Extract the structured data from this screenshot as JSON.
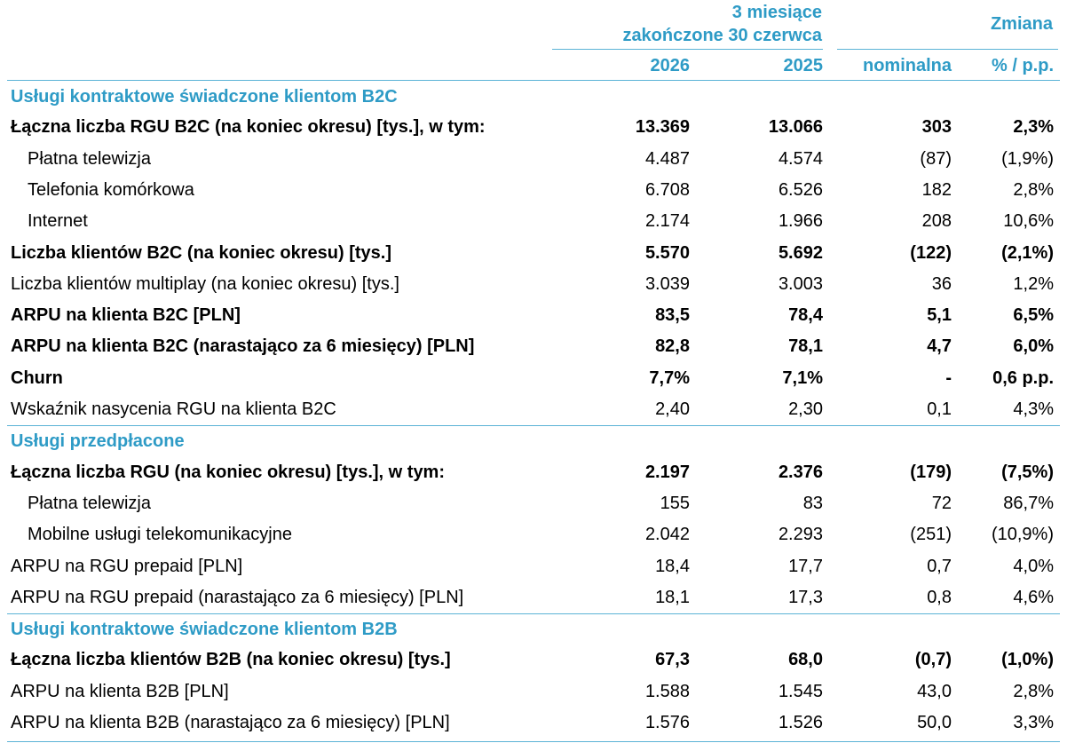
{
  "header": {
    "period_line1": "3 miesiące",
    "period_line2": "zakończone 30 czerwca",
    "change": "Zmiana",
    "col_2026": "2026",
    "col_2025": "2025",
    "col_nominal": "nominalna",
    "col_pct": "% / p.p."
  },
  "sections": [
    {
      "title": "Usługi kontraktowe świadczone klientom B2C",
      "rows": [
        {
          "label": "Łączna liczba RGU B2C (na koniec okresu) [tys.], w tym:",
          "v2026": "13.369",
          "v2025": "13.066",
          "nominal": "303",
          "pct": "2,3%",
          "bold": true,
          "indent": false
        },
        {
          "label": "Płatna telewizja",
          "v2026": "4.487",
          "v2025": "4.574",
          "nominal": "(87)",
          "pct": "(1,9%)",
          "bold": false,
          "indent": true
        },
        {
          "label": "Telefonia komórkowa",
          "v2026": "6.708",
          "v2025": "6.526",
          "nominal": "182",
          "pct": "2,8%",
          "bold": false,
          "indent": true
        },
        {
          "label": "Internet",
          "v2026": "2.174",
          "v2025": "1.966",
          "nominal": "208",
          "pct": "10,6%",
          "bold": false,
          "indent": true
        },
        {
          "label": "Liczba klientów B2C (na koniec okresu) [tys.]",
          "v2026": "5.570",
          "v2025": "5.692",
          "nominal": "(122)",
          "pct": "(2,1%)",
          "bold": true,
          "indent": false
        },
        {
          "label": "Liczba klientów multiplay (na koniec okresu) [tys.]",
          "v2026": "3.039",
          "v2025": "3.003",
          "nominal": "36",
          "pct": "1,2%",
          "bold": false,
          "indent": false
        },
        {
          "label": "ARPU na klienta B2C [PLN]",
          "v2026": "83,5",
          "v2025": "78,4",
          "nominal": "5,1",
          "pct": "6,5%",
          "bold": true,
          "indent": false
        },
        {
          "label": "ARPU na klienta B2C (narastająco za 6 miesięcy) [PLN]",
          "v2026": "82,8",
          "v2025": "78,1",
          "nominal": "4,7",
          "pct": "6,0%",
          "bold": true,
          "indent": false
        },
        {
          "label": "Churn",
          "v2026": "7,7%",
          "v2025": "7,1%",
          "nominal": "-",
          "pct": "0,6 p.p.",
          "bold": true,
          "indent": false
        },
        {
          "label": "Wskaźnik nasycenia RGU na klienta B2C",
          "v2026": "2,40",
          "v2025": "2,30",
          "nominal": "0,1",
          "pct": "4,3%",
          "bold": false,
          "indent": false
        }
      ]
    },
    {
      "title": "Usługi przedpłacone",
      "rows": [
        {
          "label": "Łączna liczba RGU (na koniec okresu) [tys.], w tym:",
          "v2026": "2.197",
          "v2025": "2.376",
          "nominal": "(179)",
          "pct": "(7,5%)",
          "bold": true,
          "indent": false
        },
        {
          "label": "Płatna telewizja",
          "v2026": "155",
          "v2025": "83",
          "nominal": "72",
          "pct": "86,7%",
          "bold": false,
          "indent": true
        },
        {
          "label": "Mobilne usługi telekomunikacyjne",
          "v2026": "2.042",
          "v2025": "2.293",
          "nominal": "(251)",
          "pct": "(10,9%)",
          "bold": false,
          "indent": true
        },
        {
          "label": "ARPU na RGU prepaid [PLN]",
          "v2026": "18,4",
          "v2025": "17,7",
          "nominal": "0,7",
          "pct": "4,0%",
          "bold": false,
          "indent": false
        },
        {
          "label": "ARPU na RGU prepaid (narastająco za 6 miesięcy) [PLN]",
          "v2026": "18,1",
          "v2025": "17,3",
          "nominal": "0,8",
          "pct": "4,6%",
          "bold": false,
          "indent": false
        }
      ]
    },
    {
      "title": "Usługi kontraktowe świadczone klientom B2B",
      "rows": [
        {
          "label": "Łączna liczba klientów B2B (na koniec okresu) [tys.]",
          "v2026": "67,3",
          "v2025": "68,0",
          "nominal": "(0,7)",
          "pct": "(1,0%)",
          "bold": true,
          "indent": false
        },
        {
          "label": "ARPU na klienta B2B [PLN]",
          "v2026": "1.588",
          "v2025": "1.545",
          "nominal": "43,0",
          "pct": "2,8%",
          "bold": false,
          "indent": false
        },
        {
          "label": "ARPU na klienta B2B (narastająco za 6 miesięcy) [PLN]",
          "v2026": "1.576",
          "v2025": "1.526",
          "nominal": "50,0",
          "pct": "3,3%",
          "bold": false,
          "indent": false
        }
      ]
    }
  ]
}
